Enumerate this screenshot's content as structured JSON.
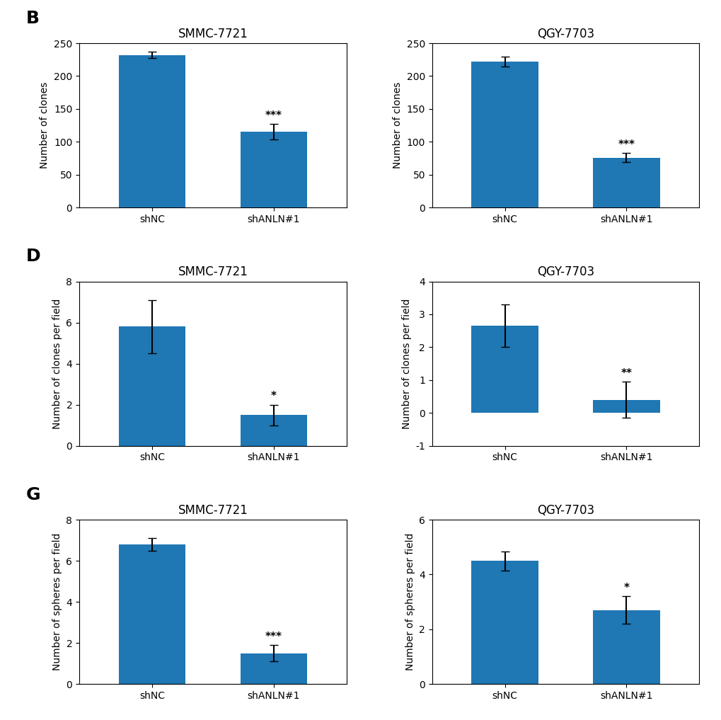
{
  "chart_data": [
    {
      "type": "bar",
      "title": "SMMC-7721",
      "ylabel": "Number of clones",
      "categories": [
        "shNC",
        "shANLN#1"
      ],
      "values": [
        232,
        115
      ],
      "errors": [
        5,
        12
      ],
      "ylim": [
        0,
        250
      ],
      "yticks": [
        0,
        50,
        100,
        150,
        200,
        250
      ],
      "annotations": [
        {
          "text": "B"
        },
        {
          "text": "***",
          "category": "shANLN#1"
        }
      ]
    },
    {
      "type": "bar",
      "title": "QGY-7703",
      "ylabel": "Number of clones",
      "categories": [
        "shNC",
        "shANLN#1"
      ],
      "values": [
        222,
        76
      ],
      "errors": [
        8,
        7
      ],
      "ylim": [
        0,
        250
      ],
      "yticks": [
        0,
        50,
        100,
        150,
        200,
        250
      ],
      "annotations": [
        {
          "text": "***",
          "category": "shANLN#1"
        }
      ]
    },
    {
      "type": "bar",
      "title": "SMMC-7721",
      "ylabel": "Number of clones per field",
      "categories": [
        "shNC",
        "shANLN#1"
      ],
      "values": [
        5.8,
        1.5
      ],
      "errors": [
        1.3,
        0.5
      ],
      "ylim": [
        0,
        8
      ],
      "yticks": [
        0,
        2,
        4,
        6,
        8
      ],
      "annotations": [
        {
          "text": "D"
        },
        {
          "text": "*",
          "category": "shANLN#1"
        }
      ]
    },
    {
      "type": "bar",
      "title": "QGY-7703",
      "ylabel": "Number of clones per field",
      "categories": [
        "shNC",
        "shANLN#1"
      ],
      "values": [
        2.65,
        0.4
      ],
      "errors": [
        0.65,
        0.55
      ],
      "ylim": [
        -1,
        4
      ],
      "yticks": [
        -1,
        0,
        1,
        2,
        3,
        4
      ],
      "annotations": [
        {
          "text": "**",
          "category": "shANLN#1"
        }
      ]
    },
    {
      "type": "bar",
      "title": "SMMC-7721",
      "ylabel": "Number of spheres per field",
      "categories": [
        "shNC",
        "shANLN#1"
      ],
      "values": [
        6.8,
        1.5
      ],
      "errors": [
        0.3,
        0.4
      ],
      "ylim": [
        0,
        8
      ],
      "yticks": [
        0,
        2,
        4,
        6,
        8
      ],
      "annotations": [
        {
          "text": "G"
        },
        {
          "text": "***",
          "category": "shANLN#1"
        }
      ]
    },
    {
      "type": "bar",
      "title": "QGY-7703",
      "ylabel": "Number of spheres per field",
      "categories": [
        "shNC",
        "shANLN#1"
      ],
      "values": [
        4.5,
        2.7
      ],
      "errors": [
        0.35,
        0.5
      ],
      "ylim": [
        0,
        6
      ],
      "yticks": [
        0,
        2,
        4,
        6
      ],
      "annotations": [
        {
          "text": "*",
          "category": "shANLN#1"
        }
      ]
    }
  ]
}
